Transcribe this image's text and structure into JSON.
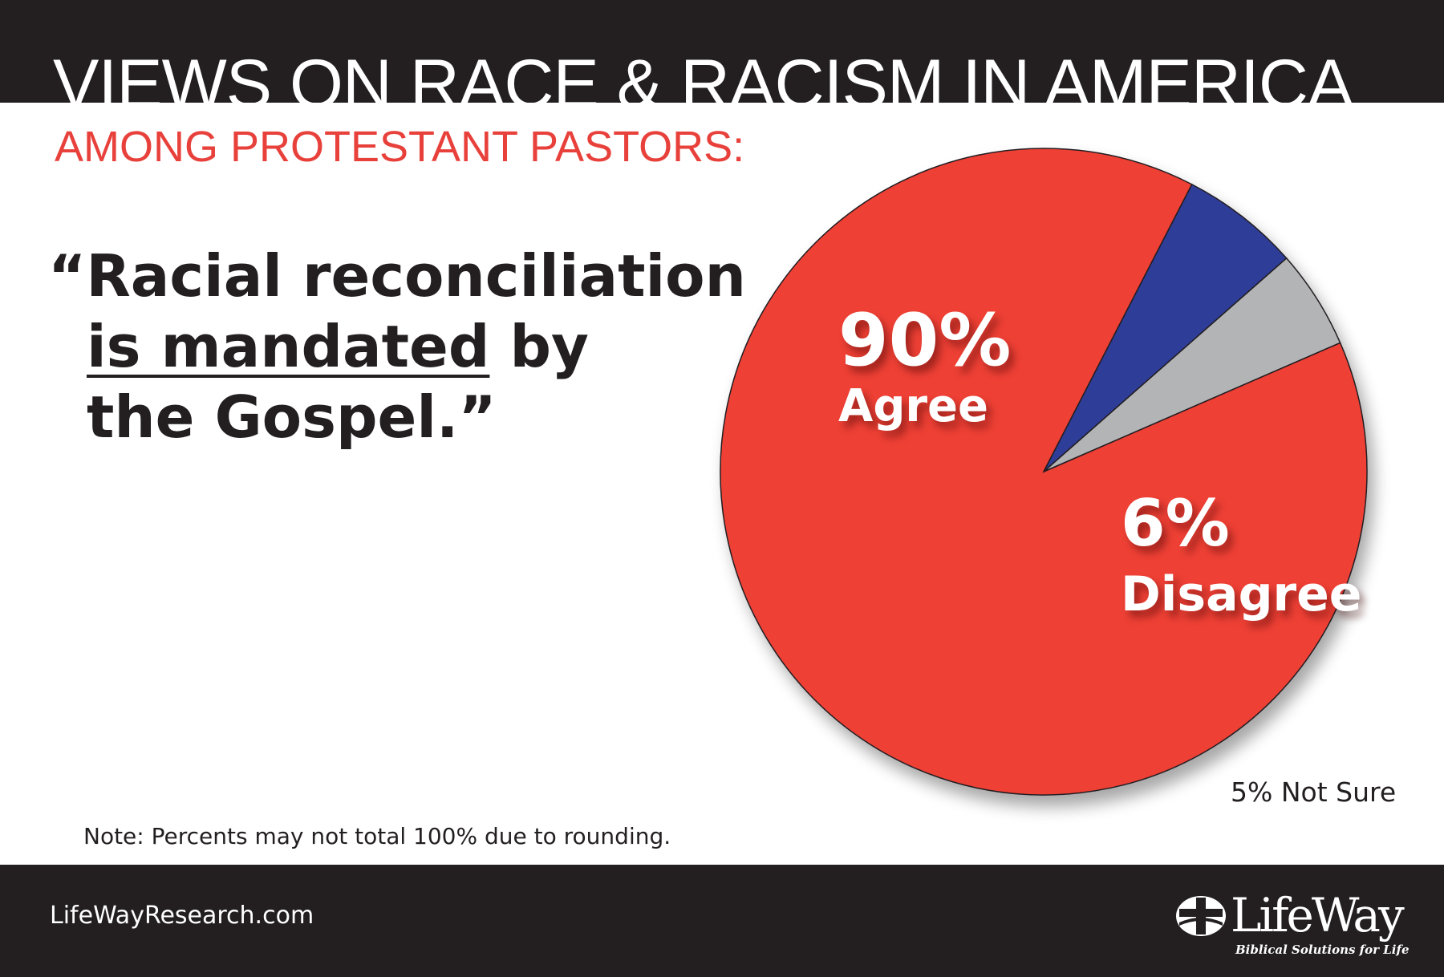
{
  "header": {
    "title": "VIEWS ON RACE & RACISM IN AMERICA",
    "subtitle": "AMONG PROTESTANT PASTORS:"
  },
  "quote": {
    "open": "“Racial reconciliation",
    "underlined": "is mandated",
    "after_underline": " by",
    "close": "the Gospel.”"
  },
  "chart_data": {
    "type": "pie",
    "title": "",
    "slices": [
      {
        "label": "Agree",
        "value": 90,
        "value_label": "90%",
        "color": "#ef4136"
      },
      {
        "label": "Disagree",
        "value": 6,
        "value_label": "6%",
        "color": "#2e3d97"
      },
      {
        "label": "Not Sure",
        "value": 5,
        "value_label": "5% Not Sure",
        "color": "#b3b4b6"
      }
    ],
    "start_angle_deg": 23.5,
    "direction": "clockwise",
    "legend": "none"
  },
  "labels": {
    "agree_pct": "90%",
    "agree": "Agree",
    "disagree_pct": "6%",
    "disagree": "Disagree",
    "not_sure": "5% Not Sure"
  },
  "note": "Note: Percents may not total 100% due to rounding.",
  "footer": {
    "website": "LifeWayResearch.com",
    "logo_name": "LifeWay",
    "logo_tagline": "Biblical Solutions for Life",
    "logo_icon": "lifeway-cross-icon"
  },
  "colors": {
    "bar": "#231f20",
    "accent": "#e8403a"
  }
}
